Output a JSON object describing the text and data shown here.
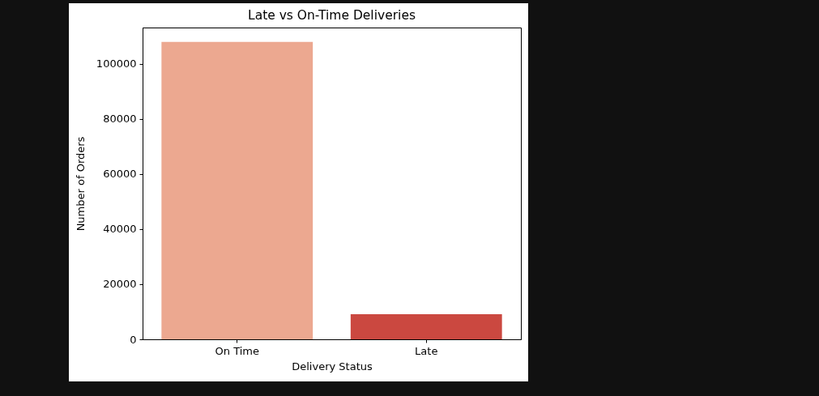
{
  "chart_data": {
    "type": "bar",
    "title": "Late vs On-Time Deliveries",
    "xlabel": "Delivery Status",
    "ylabel": "Number of Orders",
    "categories": [
      "On Time",
      "Late"
    ],
    "values": [
      108000,
      9100
    ],
    "colors": [
      "#eca890",
      "#cb4840"
    ],
    "ylim": [
      0,
      113200
    ],
    "yticks": [
      0,
      20000,
      40000,
      60000,
      80000,
      100000
    ]
  }
}
